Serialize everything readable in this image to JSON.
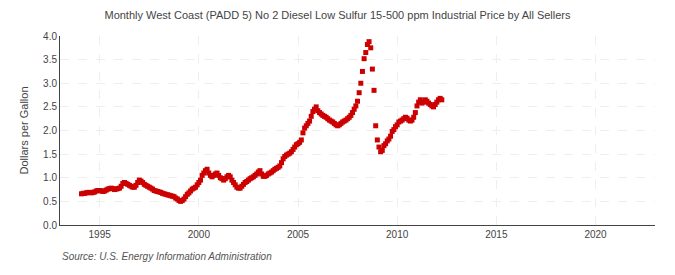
{
  "chart_data": {
    "type": "scatter",
    "title": "Monthly West Coast (PADD 5) No 2 Diesel Low Sulfur 15-500 ppm Industrial Price by All Sellers",
    "ylabel": "Dollars per Gallon",
    "annotations": [
      "Source: U.S. Energy Information Administration"
    ],
    "color": "#CC0000",
    "marker": "square",
    "grid": true,
    "xlim": [
      1993.0,
      2023.0
    ],
    "ylim": [
      0.0,
      4.0
    ],
    "xticks": [
      1995,
      2000,
      2005,
      2010,
      2015,
      2020
    ],
    "yticks": [
      {
        "value": 0.0,
        "label": "0.0"
      },
      0.5,
      {
        "value": 1.0,
        "label": "1.0"
      },
      1.5,
      {
        "value": 2.0,
        "label": "2.0"
      },
      2.5,
      {
        "value": 3.0,
        "label": "3.0"
      },
      3.5,
      {
        "value": 4.0,
        "label": "4.0"
      }
    ],
    "x": [
      1994.083,
      1994.167,
      1994.25,
      1994.333,
      1994.417,
      1994.5,
      1994.583,
      1994.667,
      1994.75,
      1994.833,
      1994.917,
      1995.0,
      1995.083,
      1995.167,
      1995.25,
      1995.333,
      1995.417,
      1995.5,
      1995.583,
      1995.667,
      1995.75,
      1995.833,
      1995.917,
      1996.0,
      1996.083,
      1996.167,
      1996.25,
      1996.333,
      1996.417,
      1996.5,
      1996.583,
      1996.667,
      1996.75,
      1996.833,
      1996.917,
      1997.0,
      1997.083,
      1997.167,
      1997.25,
      1997.333,
      1997.417,
      1997.5,
      1997.583,
      1997.667,
      1997.75,
      1997.833,
      1997.917,
      1998.0,
      1998.083,
      1998.167,
      1998.25,
      1998.333,
      1998.417,
      1998.5,
      1998.583,
      1998.667,
      1998.75,
      1998.833,
      1998.917,
      1999.0,
      1999.083,
      1999.167,
      1999.25,
      1999.333,
      1999.417,
      1999.5,
      1999.583,
      1999.667,
      1999.75,
      1999.833,
      1999.917,
      2000.0,
      2000.083,
      2000.167,
      2000.25,
      2000.333,
      2000.417,
      2000.5,
      2000.583,
      2000.667,
      2000.75,
      2000.833,
      2000.917,
      2001.0,
      2001.083,
      2001.167,
      2001.25,
      2001.333,
      2001.417,
      2001.5,
      2001.583,
      2001.667,
      2001.75,
      2001.833,
      2001.917,
      2002.0,
      2002.083,
      2002.167,
      2002.25,
      2002.333,
      2002.417,
      2002.5,
      2002.583,
      2002.667,
      2002.75,
      2002.833,
      2002.917,
      2003.0,
      2003.083,
      2003.167,
      2003.25,
      2003.333,
      2003.417,
      2003.5,
      2003.583,
      2003.667,
      2003.75,
      2003.833,
      2003.917,
      2004.0,
      2004.083,
      2004.167,
      2004.25,
      2004.333,
      2004.417,
      2004.5,
      2004.583,
      2004.667,
      2004.75,
      2004.833,
      2004.917,
      2005.0,
      2005.083,
      2005.167,
      2005.25,
      2005.333,
      2005.417,
      2005.5,
      2005.583,
      2005.667,
      2005.75,
      2005.833,
      2005.917,
      2006.0,
      2006.083,
      2006.167,
      2006.25,
      2006.333,
      2006.417,
      2006.5,
      2006.583,
      2006.667,
      2006.75,
      2006.833,
      2006.917,
      2007.0,
      2007.083,
      2007.167,
      2007.25,
      2007.333,
      2007.417,
      2007.5,
      2007.583,
      2007.667,
      2007.75,
      2007.833,
      2007.917,
      2008.0,
      2008.083,
      2008.167,
      2008.25,
      2008.333,
      2008.417,
      2008.5,
      2008.583,
      2008.667,
      2008.75,
      2008.833,
      2008.917,
      2009.0,
      2009.083,
      2009.167,
      2009.25,
      2009.333,
      2009.417,
      2009.5,
      2009.583,
      2009.667,
      2009.75,
      2009.833,
      2009.917,
      2010.0,
      2010.083,
      2010.167,
      2010.25,
      2010.333,
      2010.417,
      2010.5,
      2010.583,
      2010.667,
      2010.75,
      2010.833,
      2010.917,
      2011.0,
      2011.083,
      2011.167,
      2011.25,
      2011.333,
      2011.417,
      2011.5,
      2011.583,
      2011.667,
      2011.75,
      2011.833,
      2011.917,
      2012.0,
      2012.083,
      2012.167,
      2012.25
    ],
    "values": [
      0.66,
      0.67,
      0.67,
      0.68,
      0.69,
      0.69,
      0.68,
      0.69,
      0.7,
      0.72,
      0.73,
      0.73,
      0.72,
      0.71,
      0.72,
      0.74,
      0.76,
      0.77,
      0.78,
      0.77,
      0.75,
      0.76,
      0.77,
      0.78,
      0.82,
      0.88,
      0.9,
      0.88,
      0.86,
      0.84,
      0.82,
      0.8,
      0.8,
      0.84,
      0.9,
      0.95,
      0.93,
      0.9,
      0.86,
      0.84,
      0.82,
      0.8,
      0.78,
      0.76,
      0.73,
      0.72,
      0.71,
      0.7,
      0.69,
      0.67,
      0.66,
      0.65,
      0.64,
      0.63,
      0.62,
      0.61,
      0.6,
      0.57,
      0.55,
      0.52,
      0.5,
      0.52,
      0.55,
      0.6,
      0.65,
      0.68,
      0.72,
      0.76,
      0.78,
      0.8,
      0.85,
      0.9,
      0.95,
      1.05,
      1.1,
      1.15,
      1.18,
      1.1,
      1.05,
      1.02,
      1.05,
      1.08,
      1.1,
      1.05,
      1.0,
      0.98,
      0.95,
      0.98,
      1.02,
      1.05,
      1.02,
      0.95,
      0.9,
      0.85,
      0.8,
      0.78,
      0.78,
      0.82,
      0.86,
      0.9,
      0.92,
      0.95,
      0.98,
      1.0,
      1.02,
      1.05,
      1.08,
      1.12,
      1.15,
      1.08,
      1.03,
      1.03,
      1.05,
      1.08,
      1.1,
      1.12,
      1.15,
      1.18,
      1.2,
      1.22,
      1.25,
      1.32,
      1.4,
      1.45,
      1.48,
      1.5,
      1.52,
      1.55,
      1.6,
      1.65,
      1.7,
      1.72,
      1.75,
      1.8,
      1.95,
      2.05,
      2.1,
      2.15,
      2.2,
      2.3,
      2.4,
      2.45,
      2.5,
      2.42,
      2.38,
      2.35,
      2.32,
      2.3,
      2.28,
      2.25,
      2.22,
      2.2,
      2.18,
      2.15,
      2.12,
      2.1,
      2.12,
      2.15,
      2.18,
      2.2,
      2.22,
      2.25,
      2.28,
      2.32,
      2.38,
      2.45,
      2.52,
      2.62,
      2.8,
      3.0,
      3.25,
      3.52,
      3.65,
      3.82,
      3.88,
      3.75,
      3.3,
      2.85,
      2.1,
      1.8,
      1.65,
      1.55,
      1.58,
      1.68,
      1.72,
      1.78,
      1.82,
      1.88,
      1.98,
      2.02,
      2.08,
      2.12,
      2.18,
      2.2,
      2.22,
      2.25,
      2.28,
      2.26,
      2.22,
      2.2,
      2.22,
      2.28,
      2.38,
      2.52,
      2.6,
      2.65,
      2.58,
      2.6,
      2.65,
      2.62,
      2.58,
      2.55,
      2.52,
      2.5,
      2.55,
      2.6,
      2.65,
      2.68,
      2.65
    ]
  }
}
